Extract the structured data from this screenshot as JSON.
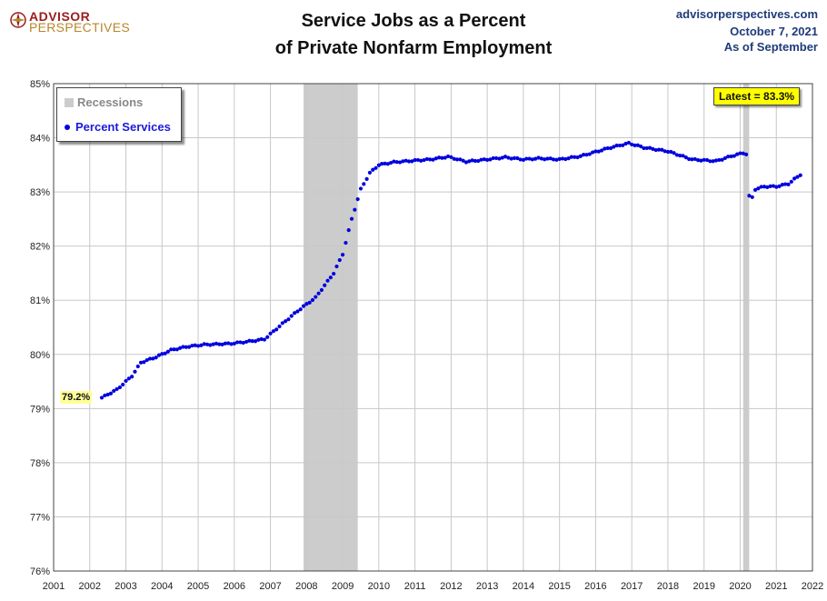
{
  "header": {
    "logo_line1": "ADVISOR",
    "logo_line2": "PERSPECTIVES",
    "title_line1": "Service Jobs as a Percent",
    "title_line2": "of Private Nonfarm Employment",
    "source": "advisorperspectives.com",
    "date": "October 7, 2021",
    "asof": "As of September"
  },
  "legend": {
    "recessions": "Recessions",
    "series": "Percent Services"
  },
  "annotations": {
    "latest": "Latest = 83.3%",
    "first": "79.2%"
  },
  "colors": {
    "series": "#0000dd",
    "recession": "#cccccc",
    "grid": "#c8c8c8",
    "annotation": "#ffff00"
  },
  "chart_data": {
    "type": "scatter",
    "title": "Service Jobs as a Percent of Private Nonfarm Employment",
    "xlabel": "",
    "ylabel": "",
    "xlim": [
      2001,
      2022
    ],
    "ylim": [
      76,
      85
    ],
    "x_ticks": [
      "2001",
      "2002",
      "2003",
      "2004",
      "2005",
      "2006",
      "2007",
      "2008",
      "2009",
      "2010",
      "2011",
      "2012",
      "2013",
      "2014",
      "2015",
      "2016",
      "2017",
      "2018",
      "2019",
      "2020",
      "2021",
      "2022"
    ],
    "y_ticks": [
      "76%",
      "77%",
      "78%",
      "79%",
      "80%",
      "81%",
      "82%",
      "83%",
      "84%",
      "85%"
    ],
    "grid": true,
    "legend_position": "top-left",
    "recessions": [
      {
        "start": "2007-12",
        "end": "2009-06"
      },
      {
        "start": "2020-02",
        "end": "2020-04"
      }
    ],
    "series": [
      {
        "name": "Percent Services",
        "anchors": [
          [
            "2002-05",
            79.2
          ],
          [
            "2002-10",
            79.35
          ],
          [
            "2003-03",
            79.6
          ],
          [
            "2003-06",
            79.85
          ],
          [
            "2003-11",
            79.95
          ],
          [
            "2004-04",
            80.08
          ],
          [
            "2004-09",
            80.14
          ],
          [
            "2005-03",
            80.18
          ],
          [
            "2005-12",
            80.2
          ],
          [
            "2006-06",
            80.24
          ],
          [
            "2006-11",
            80.28
          ],
          [
            "2007-04",
            80.52
          ],
          [
            "2007-10",
            80.8
          ],
          [
            "2008-04",
            81.05
          ],
          [
            "2008-10",
            81.5
          ],
          [
            "2009-01",
            81.85
          ],
          [
            "2009-04",
            82.5
          ],
          [
            "2009-07",
            83.05
          ],
          [
            "2009-10",
            83.35
          ],
          [
            "2010-01",
            83.5
          ],
          [
            "2010-06",
            83.55
          ],
          [
            "2011-01",
            83.58
          ],
          [
            "2011-06",
            83.6
          ],
          [
            "2011-12",
            83.65
          ],
          [
            "2012-06",
            83.56
          ],
          [
            "2013-01",
            83.6
          ],
          [
            "2013-07",
            83.64
          ],
          [
            "2014-01",
            83.6
          ],
          [
            "2014-06",
            83.62
          ],
          [
            "2015-01",
            83.6
          ],
          [
            "2015-08",
            83.66
          ],
          [
            "2016-06",
            83.82
          ],
          [
            "2016-12",
            83.9
          ],
          [
            "2017-05",
            83.82
          ],
          [
            "2018-01",
            83.75
          ],
          [
            "2018-09",
            83.6
          ],
          [
            "2019-05",
            83.57
          ],
          [
            "2019-10",
            83.66
          ],
          [
            "2020-02",
            83.72
          ],
          [
            "2020-03",
            83.7
          ],
          [
            "2020-04",
            82.92
          ],
          [
            "2020-05",
            82.9
          ],
          [
            "2020-06",
            83.05
          ],
          [
            "2020-09",
            83.1
          ],
          [
            "2021-01",
            83.1
          ],
          [
            "2021-05",
            83.15
          ],
          [
            "2021-09",
            83.32
          ]
        ]
      }
    ]
  }
}
